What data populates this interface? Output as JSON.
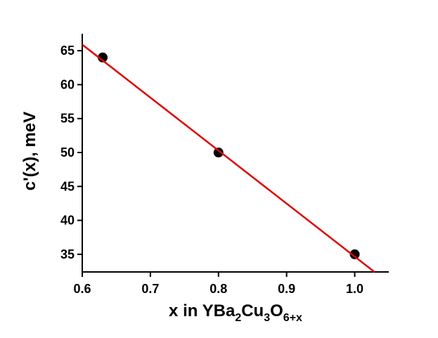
{
  "chart_data": {
    "type": "scatter",
    "xlabel_parts": [
      "x in YBa",
      "2",
      "Cu",
      "3",
      "O",
      "6+x"
    ],
    "ylabel": "c'(x), meV",
    "xlim": [
      0.6,
      1.05
    ],
    "ylim": [
      32.4,
      67.5
    ],
    "xticks": [
      0.6,
      0.7,
      0.8,
      0.9,
      {
        "value": 1.0,
        "label": "1.0"
      }
    ],
    "yticks": [
      35,
      40,
      45,
      50,
      55,
      60,
      65
    ],
    "series": [
      {
        "type": "scatter",
        "color": "#000000",
        "x": [
          0.63,
          0.8,
          1.0
        ],
        "values": [
          64,
          50,
          35
        ]
      },
      {
        "type": "line",
        "color": "#dd0000",
        "x": [
          0.6,
          1.029
        ],
        "values": [
          65.9,
          32.4
        ]
      }
    ]
  }
}
